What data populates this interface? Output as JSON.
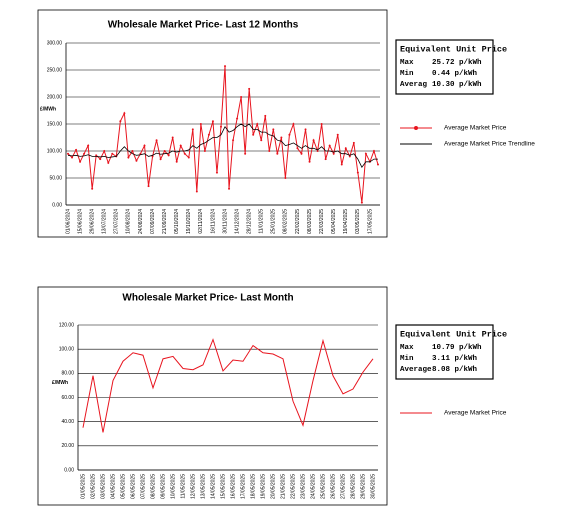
{
  "chart_data": [
    {
      "type": "line",
      "title": "Wholesale Market Price- Last 12 Months",
      "y_label": "£/MWh",
      "categories": [
        "01/06/2024",
        null,
        null,
        "15/06/2024",
        null,
        null,
        "29/06/2024",
        null,
        null,
        "13/07/2024",
        null,
        null,
        "27/07/2024",
        null,
        null,
        "10/08/2024",
        null,
        null,
        "24/08/2024",
        null,
        null,
        "07/09/2024",
        null,
        null,
        "21/09/2024",
        null,
        null,
        "05/10/2024",
        null,
        null,
        "19/10/2024",
        null,
        null,
        "02/11/2024",
        null,
        null,
        "16/11/2024",
        null,
        null,
        "30/11/2024",
        null,
        null,
        "14/12/2024",
        null,
        null,
        "28/12/2024",
        null,
        null,
        "11/01/2025",
        null,
        null,
        "25/01/2025",
        null,
        null,
        "08/02/2025",
        null,
        null,
        "22/02/2025",
        null,
        null,
        "08/03/2025",
        null,
        null,
        "22/03/2025",
        null,
        null,
        "05/04/2025",
        null,
        null,
        "19/04/2025",
        null,
        null,
        "03/05/2025",
        null,
        null,
        "17/05/2025",
        null,
        null
      ],
      "series": [
        {
          "name": "Average Market Price",
          "color": "#e8141e",
          "markers": true,
          "values": [
            95,
            88,
            102,
            80,
            95,
            110,
            30,
            92,
            85,
            100,
            78,
            95,
            90,
            155,
            170,
            88,
            100,
            82,
            95,
            110,
            35,
            90,
            120,
            85,
            100,
            92,
            125,
            80,
            110,
            95,
            88,
            140,
            25,
            150,
            100,
            130,
            155,
            60,
            145,
            257.2,
            30,
            120,
            160,
            200,
            95,
            215,
            130,
            150,
            120,
            165,
            100,
            140,
            95,
            125,
            50,
            130,
            150,
            105,
            95,
            140,
            80,
            120,
            100,
            150,
            85,
            110,
            95,
            130,
            75,
            105,
            90,
            115,
            60,
            4.4,
            95,
            80,
            100,
            75
          ]
        },
        {
          "name": "Average Market Price Trendline",
          "color": "#000000",
          "markers": false,
          "values": [
            92,
            91,
            92,
            90,
            91,
            93,
            90,
            90,
            89,
            90,
            88,
            89,
            90,
            100,
            108,
            100,
            95,
            92,
            93,
            95,
            90,
            92,
            96,
            94,
            95,
            96,
            100,
            98,
            100,
            100,
            102,
            110,
            105,
            112,
            115,
            120,
            125,
            125,
            130,
            145,
            135,
            138,
            145,
            150,
            145,
            150,
            140,
            140,
            135,
            135,
            130,
            128,
            120,
            118,
            110,
            112,
            115,
            110,
            105,
            110,
            105,
            105,
            102,
            108,
            100,
            100,
            98,
            100,
            95,
            95,
            92,
            95,
            85,
            70,
            80,
            80,
            85,
            85
          ]
        }
      ],
      "ylim": [
        0,
        300
      ],
      "yticks": [
        {
          "value": 0,
          "label": "0.00"
        },
        {
          "value": 50,
          "label": "50.00"
        },
        {
          "value": 100,
          "label": "100.00"
        },
        {
          "value": 150,
          "label": "150.00"
        },
        {
          "value": 200,
          "label": "200.00"
        },
        {
          "value": 250,
          "label": "250.00"
        },
        {
          "value": 300,
          "label": "300.00"
        }
      ],
      "grid": true,
      "info_box": {
        "title": "Equivalent Unit Price",
        "rows": [
          [
            "Max",
            "25.72 p/kWh"
          ],
          [
            "Min",
            "0.44 p/kWh"
          ],
          [
            "Averag",
            "10.30 p/kWh"
          ]
        ]
      }
    },
    {
      "type": "line",
      "title": "Wholesale Market Price- Last Month",
      "y_label": "£/MWh",
      "categories": [
        "01/05/2025",
        "02/05/2025",
        "03/05/2025",
        "04/05/2025",
        "05/05/2025",
        "06/05/2025",
        "07/05/2025",
        "08/05/2025",
        "09/05/2025",
        "10/05/2025",
        "11/05/2025",
        "12/05/2025",
        "13/05/2025",
        "14/05/2025",
        "15/05/2025",
        "16/05/2025",
        "17/05/2025",
        "18/05/2025",
        "19/05/2025",
        "20/05/2025",
        "21/05/2025",
        "22/05/2025",
        "23/05/2025",
        "24/05/2025",
        "25/05/2025",
        "26/05/2025",
        "27/05/2025",
        "28/05/2025",
        "29/05/2025",
        "30/05/2025"
      ],
      "series": [
        {
          "name": "Average Market Price",
          "color": "#e8141e",
          "markers": false,
          "values": [
            35,
            78,
            31.1,
            74,
            90,
            97,
            95,
            68,
            92,
            94,
            84,
            83,
            87,
            107.9,
            82,
            91,
            90,
            103,
            97,
            96,
            92,
            57,
            37,
            74,
            107,
            78,
            63,
            67,
            81,
            92
          ]
        }
      ],
      "ylim": [
        0,
        120
      ],
      "yticks": [
        {
          "value": 0,
          "label": "0.00"
        },
        {
          "value": 20,
          "label": "20.00"
        },
        {
          "value": 40,
          "label": "40.00"
        },
        {
          "value": 60,
          "label": "60.00"
        },
        {
          "value": 80,
          "label": "80.00"
        },
        {
          "value": 100,
          "label": "100.00"
        },
        {
          "value": 120,
          "label": "120.00"
        }
      ],
      "grid": true,
      "info_box": {
        "title": "Equivalent Unit Price",
        "rows": [
          [
            "Max",
            "10.79 p/kWh"
          ],
          [
            "Min",
            "3.11 p/kWh"
          ],
          [
            "Average",
            "8.08 p/kWh"
          ]
        ]
      }
    }
  ]
}
